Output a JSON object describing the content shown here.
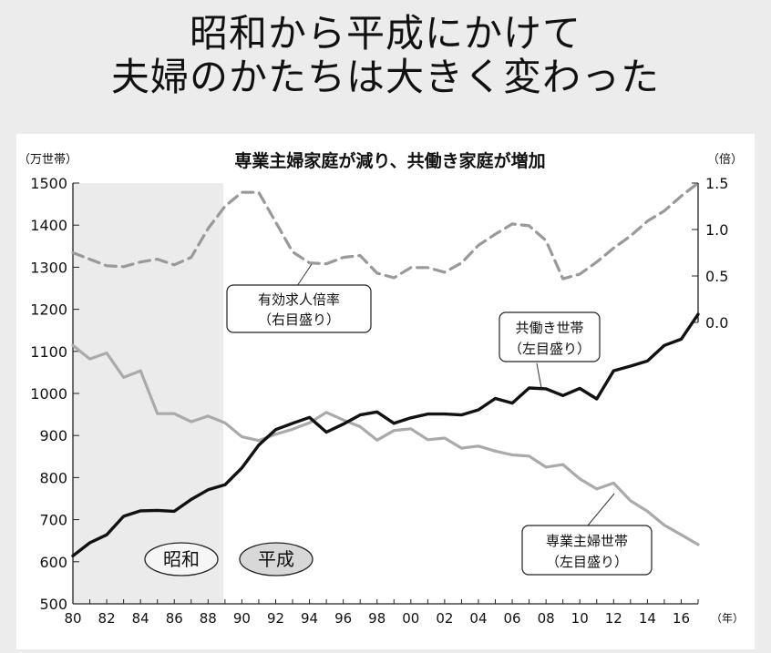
{
  "headline": {
    "line1": "昭和から平成にかけて",
    "line2": "夫婦のかたちは大きく変わった"
  },
  "chart_data": {
    "type": "line",
    "title": "専業主婦家庭が減り、共働き家庭が増加",
    "left_unit": "（万世帯）",
    "right_unit": "（倍）",
    "x_unit": "（年）",
    "x": [
      1980,
      1981,
      1982,
      1983,
      1984,
      1985,
      1986,
      1987,
      1988,
      1989,
      1990,
      1991,
      1992,
      1993,
      1994,
      1995,
      1996,
      1997,
      1998,
      1999,
      2000,
      2001,
      2002,
      2003,
      2004,
      2005,
      2006,
      2007,
      2008,
      2009,
      2010,
      2011,
      2012,
      2013,
      2014,
      2015,
      2016,
      2017
    ],
    "x_ticks": [
      {
        "year": 1980,
        "label": "80"
      },
      {
        "year": 1982,
        "label": "82"
      },
      {
        "year": 1984,
        "label": "84"
      },
      {
        "year": 1986,
        "label": "86"
      },
      {
        "year": 1988,
        "label": "88"
      },
      {
        "year": 1990,
        "label": "90"
      },
      {
        "year": 1992,
        "label": "92"
      },
      {
        "year": 1994,
        "label": "94"
      },
      {
        "year": 1996,
        "label": "96"
      },
      {
        "year": 1998,
        "label": "98"
      },
      {
        "year": 2000,
        "label": "00"
      },
      {
        "year": 2002,
        "label": "02"
      },
      {
        "year": 2004,
        "label": "04"
      },
      {
        "year": 2006,
        "label": "06"
      },
      {
        "year": 2008,
        "label": "08"
      },
      {
        "year": 2010,
        "label": "10"
      },
      {
        "year": 2012,
        "label": "12"
      },
      {
        "year": 2014,
        "label": "14"
      },
      {
        "year": 2016,
        "label": "16"
      }
    ],
    "y_left": {
      "range": [
        500,
        1500
      ],
      "ticks": [
        500,
        600,
        700,
        800,
        900,
        1000,
        1100,
        1200,
        1300,
        1400,
        1500
      ]
    },
    "y_right": {
      "range": [
        0,
        1.5
      ],
      "ticks": [
        {
          "value": 0,
          "label": "0.0"
        },
        {
          "value": 0.5,
          "label": "0.5"
        },
        {
          "value": 1,
          "label": "1.0"
        },
        {
          "value": 1.5,
          "label": "1.5"
        }
      ]
    },
    "grid": false,
    "eras": [
      {
        "name": "昭和",
        "from": 1980,
        "to": 1988.9,
        "shaded": true
      },
      {
        "name": "平成",
        "from": 1989,
        "to": 2017,
        "shaded": false
      }
    ],
    "series": [
      {
        "name": "共働き世帯",
        "axis_note": "（左目盛り）",
        "axis": "left",
        "color": "#111111",
        "style": "solid",
        "values": [
          614,
          645,
          664,
          708,
          721,
          722,
          720,
          748,
          771,
          783,
          823,
          877,
          914,
          929,
          943,
          908,
          927,
          949,
          956,
          929,
          942,
          951,
          951,
          949,
          961,
          988,
          977,
          1013,
          1011,
          995,
          1012,
          987,
          1054,
          1065,
          1077,
          1114,
          1129,
          1188
        ]
      },
      {
        "name": "専業主婦世帯",
        "axis_note": "（左目盛り）",
        "axis": "left",
        "color": "#aaaaaa",
        "style": "solid",
        "values": [
          1114,
          1082,
          1096,
          1038,
          1054,
          952,
          952,
          933,
          946,
          930,
          897,
          888,
          903,
          915,
          930,
          955,
          937,
          921,
          889,
          912,
          916,
          890,
          894,
          870,
          875,
          863,
          854,
          851,
          825,
          831,
          797,
          773,
          787,
          745,
          720,
          687,
          664,
          641
        ]
      },
      {
        "name": "有効求人倍率",
        "axis_note": "（右目盛り）",
        "axis": "right",
        "color": "#999999",
        "style": "dashed",
        "values": [
          0.75,
          0.68,
          0.61,
          0.6,
          0.65,
          0.68,
          0.62,
          0.7,
          1.01,
          1.25,
          1.4,
          1.4,
          1.08,
          0.76,
          0.64,
          0.63,
          0.7,
          0.72,
          0.53,
          0.48,
          0.59,
          0.59,
          0.54,
          0.64,
          0.83,
          0.95,
          1.06,
          1.04,
          0.88,
          0.47,
          0.52,
          0.65,
          0.8,
          0.93,
          1.09,
          1.2,
          1.36,
          1.5
        ]
      }
    ]
  }
}
